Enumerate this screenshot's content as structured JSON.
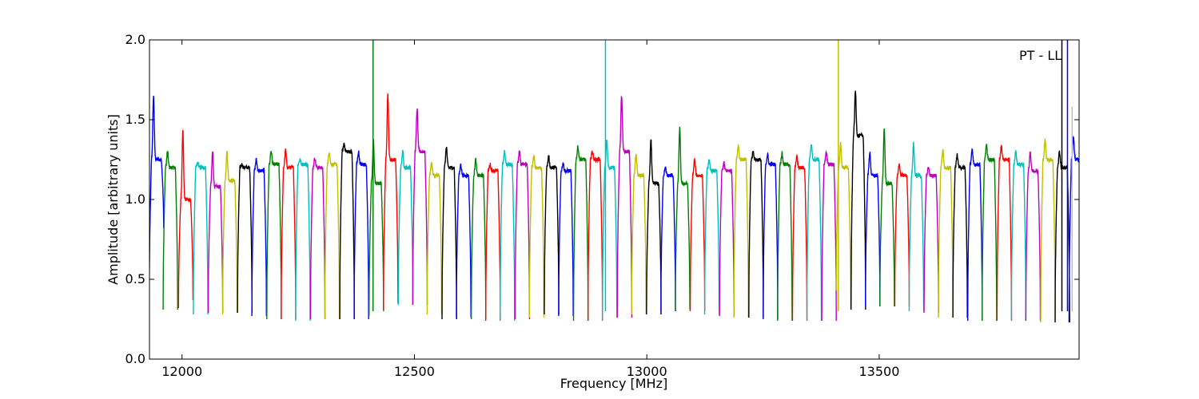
{
  "chart_data": {
    "type": "line",
    "title": "",
    "annotation": "PT - LL",
    "xlabel": "Frequency [MHz]",
    "ylabel": "Amplitude [arbitrary units]",
    "xlim": [
      11930,
      13930
    ],
    "ylim": [
      0.0,
      2.0
    ],
    "xticks": [
      12000,
      12500,
      13000,
      13500
    ],
    "xtick_labels": [
      "12000",
      "12500",
      "13000",
      "13500"
    ],
    "yticks": [
      0.0,
      0.5,
      1.0,
      1.5,
      2.0
    ],
    "ytick_labels": [
      "0.0",
      "0.5",
      "1.0",
      "1.5",
      "2.0"
    ],
    "grid": false,
    "legend": "none",
    "channel_width_mhz": 31.25,
    "color_cycle": [
      "#0000ff",
      "#008000",
      "#ff0000",
      "#00bfbf",
      "#bf00bf",
      "#bfbf00",
      "#000000"
    ],
    "channels": [
      {
        "center": 11945,
        "low_edge": 0.33,
        "high_edge": 0.82,
        "level": 1.25,
        "peak": 1.65,
        "color": "#0000ff"
      },
      {
        "center": 11975,
        "low_edge": 0.31,
        "high_edge": 0.31,
        "level": 1.2,
        "peak": 1.3,
        "color": "#008000"
      },
      {
        "center": 12008,
        "low_edge": 0.32,
        "high_edge": 0.37,
        "level": 1.0,
        "peak": 1.44,
        "color": "#ff0000"
      },
      {
        "center": 12040,
        "low_edge": 0.28,
        "high_edge": 0.28,
        "level": 1.2,
        "peak": 1.23,
        "color": "#00bfbf"
      },
      {
        "center": 12072,
        "low_edge": 0.29,
        "high_edge": 0.29,
        "level": 1.08,
        "peak": 1.3,
        "color": "#bf00bf"
      },
      {
        "center": 12103,
        "low_edge": 0.28,
        "high_edge": 0.29,
        "level": 1.12,
        "peak": 1.3,
        "color": "#bfbf00"
      },
      {
        "center": 12135,
        "low_edge": 0.29,
        "high_edge": 0.29,
        "level": 1.2,
        "peak": 1.22,
        "color": "#000000"
      },
      {
        "center": 12166,
        "low_edge": 0.27,
        "high_edge": 0.27,
        "level": 1.18,
        "peak": 1.25,
        "color": "#0000ff"
      },
      {
        "center": 12198,
        "low_edge": 0.25,
        "high_edge": 0.25,
        "level": 1.22,
        "peak": 1.3,
        "color": "#008000"
      },
      {
        "center": 12229,
        "low_edge": 0.25,
        "high_edge": 0.25,
        "level": 1.2,
        "peak": 1.31,
        "color": "#ff0000"
      },
      {
        "center": 12260,
        "low_edge": 0.24,
        "high_edge": 0.24,
        "level": 1.22,
        "peak": 1.25,
        "color": "#00bfbf"
      },
      {
        "center": 12292,
        "low_edge": 0.25,
        "high_edge": 0.25,
        "level": 1.2,
        "peak": 1.26,
        "color": "#bf00bf"
      },
      {
        "center": 12323,
        "low_edge": 0.25,
        "high_edge": 0.25,
        "level": 1.22,
        "peak": 1.3,
        "color": "#bfbf00"
      },
      {
        "center": 12355,
        "low_edge": 0.25,
        "high_edge": 0.25,
        "level": 1.3,
        "peak": 1.35,
        "color": "#000000"
      },
      {
        "center": 12386,
        "low_edge": 0.25,
        "high_edge": 0.25,
        "level": 1.22,
        "peak": 1.3,
        "color": "#0000ff"
      },
      {
        "center": 12418,
        "low_edge": 0.27,
        "high_edge": 0.3,
        "level": 1.1,
        "peak": 1.37,
        "color": "#008000"
      },
      {
        "center": 12449,
        "low_edge": 0.31,
        "high_edge": 0.35,
        "level": 1.25,
        "peak": 1.66,
        "color": "#ff0000"
      },
      {
        "center": 12481,
        "low_edge": 0.34,
        "high_edge": 0.34,
        "level": 1.2,
        "peak": 1.3,
        "color": "#00bfbf"
      },
      {
        "center": 12512,
        "low_edge": 0.34,
        "high_edge": 0.34,
        "level": 1.3,
        "peak": 1.57,
        "color": "#bf00bf"
      },
      {
        "center": 12543,
        "low_edge": 0.28,
        "high_edge": 0.28,
        "level": 1.15,
        "peak": 1.23,
        "color": "#bfbf00"
      },
      {
        "center": 12575,
        "low_edge": 0.25,
        "high_edge": 0.25,
        "level": 1.2,
        "peak": 1.33,
        "color": "#000000"
      },
      {
        "center": 12606,
        "low_edge": 0.26,
        "high_edge": 0.26,
        "level": 1.15,
        "peak": 1.22,
        "color": "#0000ff"
      },
      {
        "center": 12638,
        "low_edge": 0.25,
        "high_edge": 0.25,
        "level": 1.15,
        "peak": 1.25,
        "color": "#008000"
      },
      {
        "center": 12669,
        "low_edge": 0.24,
        "high_edge": 0.24,
        "level": 1.18,
        "peak": 1.22,
        "color": "#ff0000"
      },
      {
        "center": 12700,
        "low_edge": 0.24,
        "high_edge": 0.24,
        "level": 1.22,
        "peak": 1.3,
        "color": "#00bfbf"
      },
      {
        "center": 12732,
        "low_edge": 0.25,
        "high_edge": 0.25,
        "level": 1.22,
        "peak": 1.3,
        "color": "#bf00bf"
      },
      {
        "center": 12763,
        "low_edge": 0.26,
        "high_edge": 0.26,
        "level": 1.2,
        "peak": 1.27,
        "color": "#bfbf00"
      },
      {
        "center": 12795,
        "low_edge": 0.28,
        "high_edge": 0.28,
        "level": 1.2,
        "peak": 1.27,
        "color": "#000000"
      },
      {
        "center": 12826,
        "low_edge": 0.27,
        "high_edge": 0.27,
        "level": 1.18,
        "peak": 1.23,
        "color": "#0000ff"
      },
      {
        "center": 12858,
        "low_edge": 0.24,
        "high_edge": 0.24,
        "level": 1.25,
        "peak": 1.33,
        "color": "#008000"
      },
      {
        "center": 12889,
        "low_edge": 0.24,
        "high_edge": 0.24,
        "level": 1.25,
        "peak": 1.3,
        "color": "#ff0000"
      },
      {
        "center": 12920,
        "low_edge": 0.24,
        "high_edge": 0.26,
        "level": 1.2,
        "peak": 1.37,
        "color": "#00bfbf"
      },
      {
        "center": 12952,
        "low_edge": 0.26,
        "high_edge": 0.26,
        "level": 1.3,
        "peak": 1.65,
        "color": "#bf00bf"
      },
      {
        "center": 12983,
        "low_edge": 0.28,
        "high_edge": 0.28,
        "level": 1.15,
        "peak": 1.29,
        "color": "#bfbf00"
      },
      {
        "center": 13015,
        "low_edge": 0.28,
        "high_edge": 0.28,
        "level": 1.1,
        "peak": 1.38,
        "color": "#000000"
      },
      {
        "center": 13046,
        "low_edge": 0.3,
        "high_edge": 0.3,
        "level": 1.15,
        "peak": 1.2,
        "color": "#0000ff"
      },
      {
        "center": 13077,
        "low_edge": 0.31,
        "high_edge": 0.31,
        "level": 1.1,
        "peak": 1.45,
        "color": "#008000"
      },
      {
        "center": 13109,
        "low_edge": 0.3,
        "high_edge": 0.3,
        "level": 1.15,
        "peak": 1.25,
        "color": "#ff0000"
      },
      {
        "center": 13140,
        "low_edge": 0.28,
        "high_edge": 0.28,
        "level": 1.18,
        "peak": 1.25,
        "color": "#00bfbf"
      },
      {
        "center": 13172,
        "low_edge": 0.27,
        "high_edge": 0.27,
        "level": 1.18,
        "peak": 1.23,
        "color": "#bf00bf"
      },
      {
        "center": 13203,
        "low_edge": 0.26,
        "high_edge": 0.26,
        "level": 1.25,
        "peak": 1.34,
        "color": "#bfbf00"
      },
      {
        "center": 13235,
        "low_edge": 0.26,
        "high_edge": 0.26,
        "level": 1.25,
        "peak": 1.3,
        "color": "#000000"
      },
      {
        "center": 13266,
        "low_edge": 0.25,
        "high_edge": 0.25,
        "level": 1.22,
        "peak": 1.28,
        "color": "#0000ff"
      },
      {
        "center": 13297,
        "low_edge": 0.24,
        "high_edge": 0.24,
        "level": 1.22,
        "peak": 1.29,
        "color": "#008000"
      },
      {
        "center": 13329,
        "low_edge": 0.24,
        "high_edge": 0.24,
        "level": 1.2,
        "peak": 1.27,
        "color": "#ff0000"
      },
      {
        "center": 13360,
        "low_edge": 0.24,
        "high_edge": 0.24,
        "level": 1.25,
        "peak": 1.34,
        "color": "#00bfbf"
      },
      {
        "center": 13392,
        "low_edge": 0.24,
        "high_edge": 0.24,
        "level": 1.22,
        "peak": 1.3,
        "color": "#bf00bf"
      },
      {
        "center": 13423,
        "low_edge": 0.43,
        "high_edge": 0.31,
        "level": 1.2,
        "peak": 1.35,
        "color": "#bfbf00"
      },
      {
        "center": 13455,
        "low_edge": 0.31,
        "high_edge": 0.31,
        "level": 1.4,
        "peak": 1.68,
        "color": "#000000"
      },
      {
        "center": 13486,
        "low_edge": 0.33,
        "high_edge": 0.33,
        "level": 1.15,
        "peak": 1.3,
        "color": "#0000ff"
      },
      {
        "center": 13517,
        "low_edge": 0.33,
        "high_edge": 0.33,
        "level": 1.1,
        "peak": 1.44,
        "color": "#008000"
      },
      {
        "center": 13549,
        "low_edge": 0.33,
        "high_edge": 0.33,
        "level": 1.15,
        "peak": 1.22,
        "color": "#ff0000"
      },
      {
        "center": 13580,
        "low_edge": 0.3,
        "high_edge": 0.3,
        "level": 1.15,
        "peak": 1.35,
        "color": "#00bfbf"
      },
      {
        "center": 13612,
        "low_edge": 0.29,
        "high_edge": 0.29,
        "level": 1.15,
        "peak": 1.2,
        "color": "#bf00bf"
      },
      {
        "center": 13643,
        "low_edge": 0.26,
        "high_edge": 0.26,
        "level": 1.2,
        "peak": 1.31,
        "color": "#bfbf00"
      },
      {
        "center": 13674,
        "low_edge": 0.26,
        "high_edge": 0.26,
        "level": 1.2,
        "peak": 1.28,
        "color": "#000000"
      },
      {
        "center": 13706,
        "low_edge": 0.24,
        "high_edge": 0.24,
        "level": 1.22,
        "peak": 1.31,
        "color": "#0000ff"
      },
      {
        "center": 13737,
        "low_edge": 0.24,
        "high_edge": 0.24,
        "level": 1.25,
        "peak": 1.34,
        "color": "#008000"
      },
      {
        "center": 13769,
        "low_edge": 0.24,
        "high_edge": 0.24,
        "level": 1.25,
        "peak": 1.33,
        "color": "#ff0000"
      },
      {
        "center": 13800,
        "low_edge": 0.24,
        "high_edge": 0.24,
        "level": 1.22,
        "peak": 1.3,
        "color": "#00bfbf"
      },
      {
        "center": 13831,
        "low_edge": 0.24,
        "high_edge": 0.24,
        "level": 1.18,
        "peak": 1.3,
        "color": "#bf00bf"
      },
      {
        "center": 13863,
        "low_edge": 0.23,
        "high_edge": 0.23,
        "level": 1.25,
        "peak": 1.37,
        "color": "#bfbf00"
      },
      {
        "center": 13894,
        "low_edge": 0.23,
        "high_edge": 0.23,
        "level": 1.2,
        "peak": 1.3,
        "color": "#000000"
      },
      {
        "center": 13924,
        "low_edge": 0.23,
        "high_edge": 0.8,
        "level": 1.25,
        "peak": 1.39,
        "color": "#0000ff"
      }
    ],
    "spikes": [
      {
        "x": 12411,
        "y_top": 2.0,
        "color": "#008000"
      },
      {
        "x": 12911,
        "y_top": 2.0,
        "color": "#00bfbf"
      },
      {
        "x": 13412,
        "y_top": 2.0,
        "color": "#bfbf00"
      },
      {
        "x": 13893,
        "y_top": 2.0,
        "color": "#000000"
      },
      {
        "x": 13905,
        "y_top": 2.0,
        "color": "#0000ff"
      },
      {
        "x": 13915,
        "y_top": 1.58,
        "color": "#bfbfbf"
      }
    ]
  }
}
